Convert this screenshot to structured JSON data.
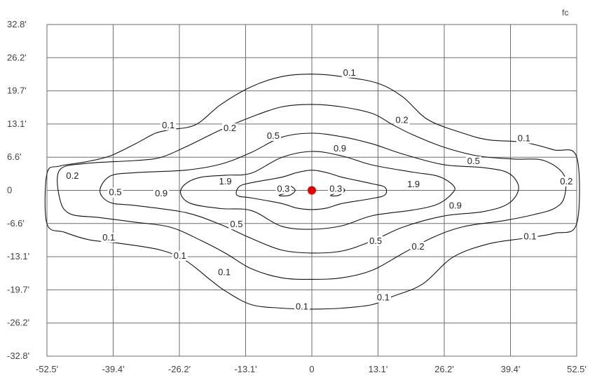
{
  "chart_data": {
    "type": "contour",
    "unit": "fc",
    "x_ticks": [
      "-52.5'",
      "-39.4'",
      "-26.2'",
      "-13.1'",
      "0",
      "13.1'",
      "26.2'",
      "39.4'",
      "52.5'"
    ],
    "y_ticks": [
      "32.8'",
      "26.2'",
      "19.7'",
      "13.1'",
      "6.6'",
      "0",
      "-6.6'",
      "-13.1'",
      "-19.7'",
      "-26.2'",
      "-32.8'"
    ],
    "xlim": [
      -52.5,
      52.5
    ],
    "ylim": [
      -32.8,
      32.8
    ],
    "grid": true,
    "source_marker": {
      "x": 0,
      "y": 0,
      "color": "#e00000"
    },
    "contours": [
      {
        "level": "0.1",
        "points": [
          [
            -52.5,
            3.3
          ],
          [
            -50,
            4.8
          ],
          [
            -45,
            5.6
          ],
          [
            -40,
            6.8
          ],
          [
            -35,
            9.2
          ],
          [
            -31,
            11.3
          ],
          [
            -28,
            12.0
          ],
          [
            -23,
            13.0
          ],
          [
            -18,
            17.0
          ],
          [
            -12,
            20.5
          ],
          [
            -6,
            22.5
          ],
          [
            0,
            23.0
          ],
          [
            6,
            22.5
          ],
          [
            13,
            21.2
          ],
          [
            18,
            18.5
          ],
          [
            23,
            14.0
          ],
          [
            30,
            11.3
          ],
          [
            35,
            10.0
          ],
          [
            42,
            9.5
          ],
          [
            48,
            8.0
          ],
          [
            52.5,
            6.6
          ],
          [
            52.5,
            -6.6
          ],
          [
            48,
            -8.5
          ],
          [
            42,
            -9.5
          ],
          [
            35,
            -10.6
          ],
          [
            28,
            -13.2
          ],
          [
            22,
            -18.5
          ],
          [
            16,
            -21.0
          ],
          [
            12,
            -22.6
          ],
          [
            6,
            -23.3
          ],
          [
            0,
            -23.5
          ],
          [
            -6,
            -23.3
          ],
          [
            -12,
            -22.6
          ],
          [
            -17,
            -20.0
          ],
          [
            -20,
            -17.8
          ],
          [
            -25,
            -13.9
          ],
          [
            -30,
            -11.8
          ],
          [
            -38,
            -10.5
          ],
          [
            -44,
            -9.8
          ],
          [
            -49,
            -8.3
          ],
          [
            -52.5,
            -6.6
          ]
        ],
        "closed": true
      },
      {
        "level": "0.2",
        "points": [
          [
            -50,
            4.0
          ],
          [
            -45,
            5.3
          ],
          [
            -35,
            5.9
          ],
          [
            -30,
            6.5
          ],
          [
            -25,
            8.6
          ],
          [
            -18,
            12.0
          ],
          [
            -12,
            14.5
          ],
          [
            -6,
            16.5
          ],
          [
            0,
            17.0
          ],
          [
            6,
            16.5
          ],
          [
            12,
            15.2
          ],
          [
            16,
            13.0
          ],
          [
            20,
            11.0
          ],
          [
            26,
            8.6
          ],
          [
            33,
            6.8
          ],
          [
            40,
            6.2
          ],
          [
            46,
            5.9
          ],
          [
            50,
            3.0
          ],
          [
            50,
            -1.5
          ],
          [
            48,
            -3.6
          ],
          [
            44,
            -4.8
          ],
          [
            38,
            -6.0
          ],
          [
            30,
            -7.2
          ],
          [
            24,
            -9.3
          ],
          [
            18,
            -12.5
          ],
          [
            12,
            -15.8
          ],
          [
            6,
            -17.3
          ],
          [
            0,
            -17.6
          ],
          [
            -6,
            -17.3
          ],
          [
            -12,
            -15.5
          ],
          [
            -17,
            -12.5
          ],
          [
            -22,
            -9.9
          ],
          [
            -28,
            -7.3
          ],
          [
            -35,
            -6.3
          ],
          [
            -42,
            -5.4
          ],
          [
            -48,
            -4.6
          ],
          [
            -50,
            -1.5
          ]
        ],
        "closed": true
      },
      {
        "level": "0.5",
        "points": [
          [
            -42,
            -0.1
          ],
          [
            -40,
            2.8
          ],
          [
            -35,
            3.5
          ],
          [
            -25,
            4.0
          ],
          [
            -18,
            5.2
          ],
          [
            -12,
            7.5
          ],
          [
            -6,
            10.5
          ],
          [
            0,
            11.3
          ],
          [
            6,
            10.6
          ],
          [
            12,
            9.2
          ],
          [
            18,
            7.2
          ],
          [
            26,
            5.1
          ],
          [
            34,
            4.5
          ],
          [
            39,
            3.4
          ],
          [
            41,
            0.5
          ],
          [
            39,
            -2.6
          ],
          [
            34,
            -4.2
          ],
          [
            26,
            -5.1
          ],
          [
            18,
            -7.3
          ],
          [
            12,
            -10.0
          ],
          [
            6,
            -12.0
          ],
          [
            0,
            -12.4
          ],
          [
            -6,
            -11.8
          ],
          [
            -12,
            -9.5
          ],
          [
            -18,
            -6.8
          ],
          [
            -25,
            -4.4
          ],
          [
            -35,
            -3.0
          ],
          [
            -40,
            -2.4
          ]
        ],
        "closed": true
      },
      {
        "level": "0.9",
        "points": [
          [
            -26,
            -0.6
          ],
          [
            -25,
            1.3
          ],
          [
            -22,
            2.6
          ],
          [
            -17,
            3.0
          ],
          [
            -12,
            3.4
          ],
          [
            -6,
            6.5
          ],
          [
            0,
            7.7
          ],
          [
            6,
            6.8
          ],
          [
            12,
            5.0
          ],
          [
            20,
            3.6
          ],
          [
            25,
            2.8
          ],
          [
            28,
            1.0
          ],
          [
            28,
            -0.4
          ],
          [
            25,
            -2.7
          ],
          [
            20,
            -3.9
          ],
          [
            12,
            -5.0
          ],
          [
            6,
            -7.0
          ],
          [
            0,
            -7.7
          ],
          [
            -6,
            -7.1
          ],
          [
            -12,
            -4.0
          ],
          [
            -18,
            -3.6
          ],
          [
            -24,
            -2.6
          ]
        ],
        "closed": true
      },
      {
        "level": "1.9",
        "points": [
          [
            -15,
            -0.6
          ],
          [
            -14.3,
            0.8
          ],
          [
            -12,
            1.5
          ],
          [
            -6,
            2.6
          ],
          [
            -3,
            3.5
          ],
          [
            0,
            4.0
          ],
          [
            3,
            3.5
          ],
          [
            6,
            2.6
          ],
          [
            12,
            1.3
          ],
          [
            14.5,
            0.6
          ],
          [
            14.5,
            -0.9
          ],
          [
            12,
            -1.6
          ],
          [
            6,
            -2.6
          ],
          [
            3,
            -3.5
          ],
          [
            0,
            -3.8
          ],
          [
            -3,
            -3.5
          ],
          [
            -6,
            -2.6
          ],
          [
            -12,
            -1.5
          ],
          [
            -14.3,
            -1.2
          ]
        ],
        "closed": true
      },
      {
        "level": "0.3",
        "points": [
          [
            -6.5,
            1.0
          ],
          [
            -4.5,
            1.0
          ],
          [
            -3.3,
            0
          ],
          [
            -4.5,
            -1.0
          ],
          [
            -6.5,
            -1.0
          ],
          [
            -4.5,
            -0.2
          ]
        ],
        "closed": true
      },
      {
        "level": "0.3",
        "points": [
          [
            3.7,
            1.0
          ],
          [
            5.3,
            1.0
          ],
          [
            6.5,
            0
          ],
          [
            5.3,
            -1.0
          ],
          [
            3.7,
            -1.0
          ],
          [
            5.3,
            -0.2
          ]
        ],
        "closed": true
      }
    ],
    "labels": [
      {
        "text": "0.1",
        "x": 6.2,
        "y": 22.7
      },
      {
        "text": "0.1",
        "x": -29.7,
        "y": 12.3
      },
      {
        "text": "0.1",
        "x": 40.8,
        "y": 9.7
      },
      {
        "text": "0.1",
        "x": -41.5,
        "y": -9.9
      },
      {
        "text": "0.1",
        "x": -27.4,
        "y": -13.5
      },
      {
        "text": "0.1",
        "x": 42.0,
        "y": -9.7
      },
      {
        "text": "0.1",
        "x": -18.6,
        "y": -16.8
      },
      {
        "text": "0.1",
        "x": 12.9,
        "y": -21.8
      },
      {
        "text": "0.1",
        "x": -3.2,
        "y": -23.6
      },
      {
        "text": "0.2",
        "x": -17.5,
        "y": 11.7
      },
      {
        "text": "0.2",
        "x": 16.6,
        "y": 13.3
      },
      {
        "text": "0.2",
        "x": -48.7,
        "y": 2.3
      },
      {
        "text": "0.2",
        "x": 49.2,
        "y": 1.2
      },
      {
        "text": "0.2",
        "x": 19.8,
        "y": -11.7
      },
      {
        "text": "0.5",
        "x": -8.9,
        "y": 10.2
      },
      {
        "text": "0.5",
        "x": 30.8,
        "y": 5.2
      },
      {
        "text": "0.5",
        "x": -40.2,
        "y": -1.0
      },
      {
        "text": "0.5",
        "x": -16.2,
        "y": -7.3
      },
      {
        "text": "0.5",
        "x": 11.4,
        "y": -10.6
      },
      {
        "text": "0.9",
        "x": 4.3,
        "y": 7.7
      },
      {
        "text": "0.9",
        "x": -31.1,
        "y": -1.2
      },
      {
        "text": "0.9",
        "x": 27.2,
        "y": -3.6
      },
      {
        "text": "1.9",
        "x": -18.4,
        "y": 1.2
      },
      {
        "text": "1.9",
        "x": 18.9,
        "y": 0.6
      },
      {
        "text": "0.3",
        "x": -6.9,
        "y": -0.3
      },
      {
        "text": "0.3",
        "x": 3.5,
        "y": -0.3
      }
    ]
  }
}
